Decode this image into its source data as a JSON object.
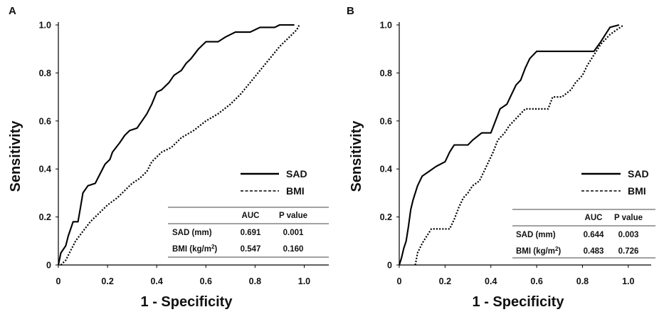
{
  "chart_data": [
    {
      "panel": "A",
      "type": "line",
      "xlabel": "1 - Specificity",
      "ylabel": "Sensitivity",
      "xlim": [
        0,
        1.1
      ],
      "ylim": [
        0,
        1.0
      ],
      "xticks": [
        "0",
        "0.2",
        "0.4",
        "0.6",
        "0.8",
        "1.0"
      ],
      "yticks": [
        "0",
        "0.2",
        "0.4",
        "0.6",
        "0.8",
        "1.0"
      ],
      "series": [
        {
          "name": "SAD",
          "style": "solid",
          "color": "#000000",
          "points": [
            [
              0,
              0
            ],
            [
              0.01,
              0.05
            ],
            [
              0.03,
              0.08
            ],
            [
              0.04,
              0.12
            ],
            [
              0.05,
              0.15
            ],
            [
              0.06,
              0.18
            ],
            [
              0.08,
              0.18
            ],
            [
              0.09,
              0.24
            ],
            [
              0.1,
              0.3
            ],
            [
              0.12,
              0.33
            ],
            [
              0.15,
              0.34
            ],
            [
              0.17,
              0.38
            ],
            [
              0.19,
              0.42
            ],
            [
              0.21,
              0.44
            ],
            [
              0.22,
              0.47
            ],
            [
              0.25,
              0.51
            ],
            [
              0.27,
              0.54
            ],
            [
              0.29,
              0.56
            ],
            [
              0.32,
              0.57
            ],
            [
              0.34,
              0.6
            ],
            [
              0.36,
              0.63
            ],
            [
              0.38,
              0.67
            ],
            [
              0.4,
              0.72
            ],
            [
              0.42,
              0.73
            ],
            [
              0.45,
              0.76
            ],
            [
              0.47,
              0.79
            ],
            [
              0.5,
              0.81
            ],
            [
              0.52,
              0.84
            ],
            [
              0.54,
              0.86
            ],
            [
              0.57,
              0.9
            ],
            [
              0.6,
              0.93
            ],
            [
              0.65,
              0.93
            ],
            [
              0.68,
              0.95
            ],
            [
              0.72,
              0.97
            ],
            [
              0.78,
              0.97
            ],
            [
              0.82,
              0.99
            ],
            [
              0.88,
              0.99
            ],
            [
              0.9,
              1.0
            ],
            [
              0.96,
              1.0
            ]
          ]
        },
        {
          "name": "BMI",
          "style": "dotted",
          "color": "#000000",
          "points": [
            [
              0.01,
              0
            ],
            [
              0.03,
              0.02
            ],
            [
              0.05,
              0.06
            ],
            [
              0.07,
              0.1
            ],
            [
              0.1,
              0.14
            ],
            [
              0.13,
              0.18
            ],
            [
              0.16,
              0.21
            ],
            [
              0.2,
              0.25
            ],
            [
              0.24,
              0.28
            ],
            [
              0.27,
              0.31
            ],
            [
              0.3,
              0.34
            ],
            [
              0.33,
              0.36
            ],
            [
              0.36,
              0.39
            ],
            [
              0.38,
              0.43
            ],
            [
              0.42,
              0.47
            ],
            [
              0.46,
              0.49
            ],
            [
              0.5,
              0.53
            ],
            [
              0.55,
              0.56
            ],
            [
              0.6,
              0.6
            ],
            [
              0.65,
              0.63
            ],
            [
              0.7,
              0.67
            ],
            [
              0.74,
              0.71
            ],
            [
              0.78,
              0.76
            ],
            [
              0.82,
              0.81
            ],
            [
              0.86,
              0.86
            ],
            [
              0.9,
              0.91
            ],
            [
              0.94,
              0.95
            ],
            [
              0.97,
              0.98
            ],
            [
              0.98,
              1.0
            ]
          ]
        }
      ],
      "legend": {
        "placement": "lower-right",
        "entries": [
          "SAD",
          "BMI"
        ]
      },
      "table": {
        "headers": [
          "",
          "AUC",
          "P value"
        ],
        "rows": [
          {
            "label": "SAD (mm)",
            "unit_sup": "",
            "unit_tail": "",
            "auc": "0.691",
            "p": "0.001"
          },
          {
            "label": "BMI  (kg/m",
            "unit_sup": "2",
            "unit_tail": ")",
            "auc": "0.547",
            "p": "0.160"
          }
        ]
      }
    },
    {
      "panel": "B",
      "type": "line",
      "xlabel": "1 - Specificity",
      "ylabel": "Sensitivity",
      "xlim": [
        0,
        1.1
      ],
      "ylim": [
        0,
        1.0
      ],
      "xticks": [
        "0",
        "0.2",
        "0.4",
        "0.6",
        "0.8",
        "1.0"
      ],
      "yticks": [
        "0",
        "0.2",
        "0.4",
        "0.6",
        "0.8",
        "1.0"
      ],
      "series": [
        {
          "name": "SAD",
          "style": "solid",
          "color": "#000000",
          "points": [
            [
              0,
              0
            ],
            [
              0.01,
              0.03
            ],
            [
              0.02,
              0.07
            ],
            [
              0.03,
              0.1
            ],
            [
              0.04,
              0.16
            ],
            [
              0.05,
              0.23
            ],
            [
              0.06,
              0.27
            ],
            [
              0.08,
              0.33
            ],
            [
              0.1,
              0.37
            ],
            [
              0.13,
              0.39
            ],
            [
              0.16,
              0.41
            ],
            [
              0.2,
              0.43
            ],
            [
              0.22,
              0.47
            ],
            [
              0.24,
              0.5
            ],
            [
              0.3,
              0.5
            ],
            [
              0.32,
              0.52
            ],
            [
              0.36,
              0.55
            ],
            [
              0.4,
              0.55
            ],
            [
              0.42,
              0.6
            ],
            [
              0.44,
              0.65
            ],
            [
              0.47,
              0.67
            ],
            [
              0.49,
              0.71
            ],
            [
              0.51,
              0.75
            ],
            [
              0.53,
              0.77
            ],
            [
              0.55,
              0.82
            ],
            [
              0.57,
              0.86
            ],
            [
              0.6,
              0.89
            ],
            [
              0.85,
              0.89
            ],
            [
              0.88,
              0.93
            ],
            [
              0.9,
              0.96
            ],
            [
              0.92,
              0.99
            ],
            [
              0.96,
              1.0
            ]
          ]
        },
        {
          "name": "BMI",
          "style": "dotted",
          "color": "#000000",
          "points": [
            [
              0.07,
              0
            ],
            [
              0.08,
              0.05
            ],
            [
              0.1,
              0.09
            ],
            [
              0.12,
              0.12
            ],
            [
              0.14,
              0.15
            ],
            [
              0.22,
              0.15
            ],
            [
              0.24,
              0.19
            ],
            [
              0.26,
              0.24
            ],
            [
              0.28,
              0.28
            ],
            [
              0.3,
              0.3
            ],
            [
              0.32,
              0.33
            ],
            [
              0.35,
              0.35
            ],
            [
              0.37,
              0.39
            ],
            [
              0.39,
              0.43
            ],
            [
              0.41,
              0.47
            ],
            [
              0.43,
              0.52
            ],
            [
              0.46,
              0.55
            ],
            [
              0.48,
              0.58
            ],
            [
              0.5,
              0.6
            ],
            [
              0.52,
              0.62
            ],
            [
              0.55,
              0.65
            ],
            [
              0.65,
              0.65
            ],
            [
              0.67,
              0.7
            ],
            [
              0.71,
              0.7
            ],
            [
              0.75,
              0.73
            ],
            [
              0.77,
              0.76
            ],
            [
              0.8,
              0.79
            ],
            [
              0.82,
              0.83
            ],
            [
              0.84,
              0.86
            ],
            [
              0.86,
              0.89
            ],
            [
              0.88,
              0.92
            ],
            [
              0.92,
              0.96
            ],
            [
              0.95,
              0.98
            ],
            [
              0.98,
              1.0
            ]
          ]
        }
      ],
      "legend": {
        "placement": "lower-right",
        "entries": [
          "SAD",
          "BMI"
        ]
      },
      "table": {
        "headers": [
          "",
          "AUC",
          "P value"
        ],
        "rows": [
          {
            "label": "SAD (mm)",
            "unit_sup": "",
            "unit_tail": "",
            "auc": "0.644",
            "p": "0.003"
          },
          {
            "label": "BMI  (kg/m",
            "unit_sup": "2",
            "unit_tail": ")",
            "auc": "0.483",
            "p": "0.726"
          }
        ]
      }
    }
  ]
}
